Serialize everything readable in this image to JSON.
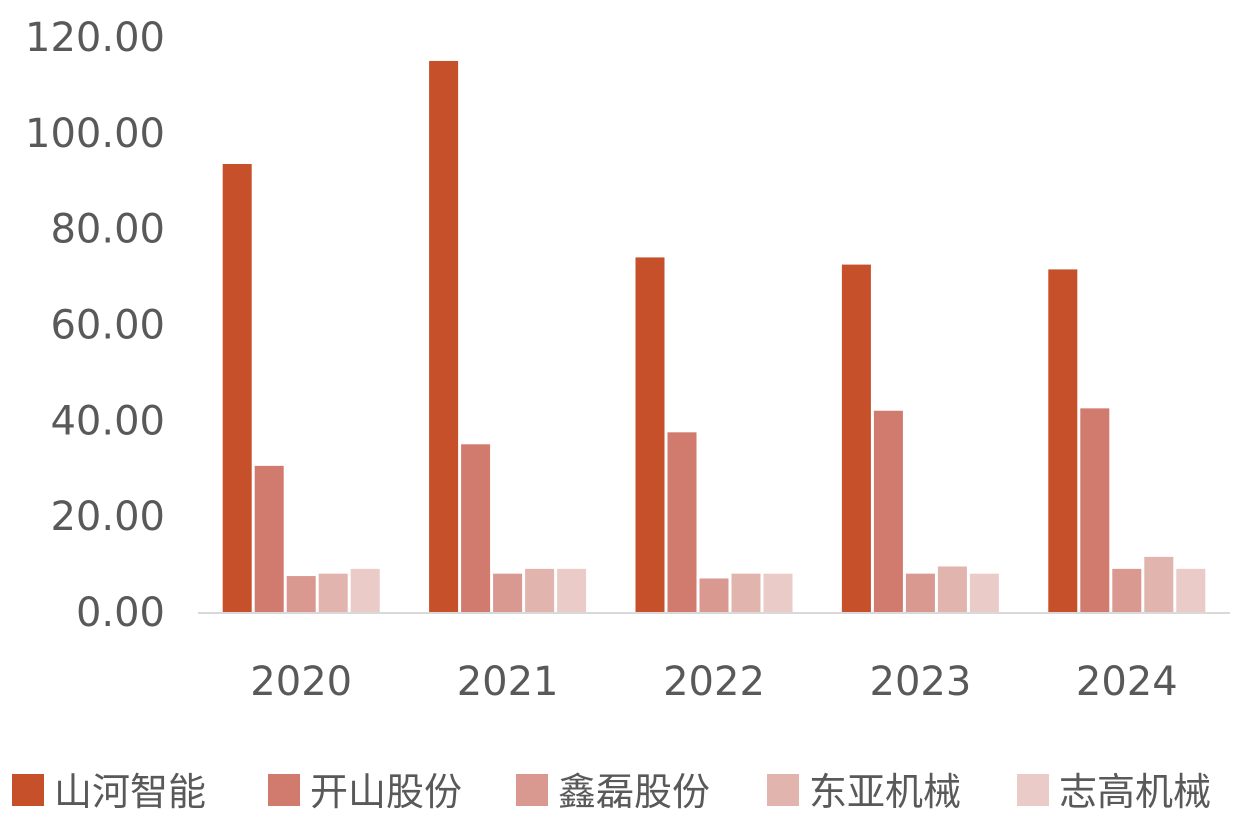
{
  "chart_data": {
    "type": "bar",
    "categories": [
      "2020",
      "2021",
      "2022",
      "2023",
      "2024"
    ],
    "series": [
      {
        "name": "山河智能",
        "color": "#C5502A",
        "values": [
          93.5,
          115.0,
          74.0,
          72.5,
          71.5
        ]
      },
      {
        "name": "开山股份",
        "color": "#D17A6E",
        "values": [
          30.5,
          35.0,
          37.5,
          42.0,
          42.5
        ]
      },
      {
        "name": "鑫磊股份",
        "color": "#D99890",
        "values": [
          7.5,
          8.0,
          7.0,
          8.0,
          9.0
        ]
      },
      {
        "name": "东亚机械",
        "color": "#E2B4AE",
        "values": [
          8.0,
          9.0,
          8.0,
          9.5,
          11.5
        ]
      },
      {
        "name": "志高机械",
        "color": "#EACBC7",
        "values": [
          9.0,
          9.0,
          8.0,
          8.0,
          9.0
        ]
      }
    ],
    "yticks": [
      "0.00",
      "20.00",
      "40.00",
      "60.00",
      "80.00",
      "100.00",
      "120.00"
    ],
    "ylim": [
      0,
      120
    ],
    "legend_position": "bottom",
    "grid": false
  }
}
